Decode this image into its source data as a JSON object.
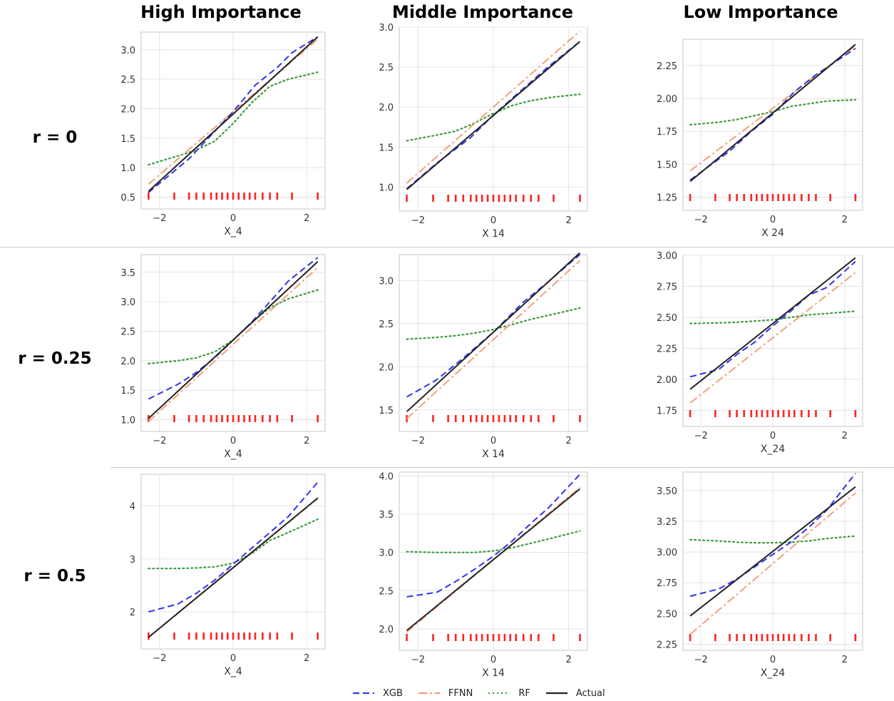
{
  "columns": [
    "High Importance",
    "Middle Importance",
    "Low Importance"
  ],
  "rows": [
    "r = 0",
    "r = 0.25",
    "r = 0.5"
  ],
  "series_styles": {
    "XGB": {
      "color": "#3333ee",
      "dash": "9,5"
    },
    "FFNN": {
      "color": "#f4a078",
      "dash": "12,4,3,4"
    },
    "RF": {
      "color": "#3a9a3a",
      "dash": "2,4"
    },
    "Actual": {
      "color": "#222222",
      "dash": ""
    }
  },
  "legend": [
    {
      "name": "XGB",
      "color": "#3333ee"
    },
    {
      "name": "FFNN",
      "color": "#f4a078"
    },
    {
      "name": "RF",
      "color": "#3a9a3a"
    },
    {
      "name": "Actual",
      "color": "#222222"
    }
  ],
  "chart_data": [
    {
      "type": "line",
      "xlabel": "X_4",
      "xlim": [
        -2.5,
        2.5
      ],
      "ylim": [
        0.3,
        3.3
      ],
      "xticks": [
        -2,
        0,
        2
      ],
      "yticks": [
        0.5,
        1.0,
        1.5,
        2.0,
        2.5,
        3.0
      ],
      "ytick_labels": [
        "0.5",
        "1.0",
        "1.5",
        "2.0",
        "2.5",
        "3.0"
      ],
      "rug_color": "#ff2222",
      "rug": [
        -2.3,
        -1.6,
        -1.2,
        -1.0,
        -0.8,
        -0.6,
        -0.45,
        -0.3,
        -0.15,
        0.0,
        0.15,
        0.3,
        0.45,
        0.6,
        0.8,
        1.0,
        1.2,
        1.6,
        2.3
      ],
      "series": [
        {
          "name": "XGB",
          "x": [
            -2.3,
            -1.2,
            -0.6,
            0.0,
            0.6,
            1.2,
            1.6,
            2.3
          ],
          "y": [
            0.58,
            1.15,
            1.55,
            1.95,
            2.4,
            2.7,
            2.95,
            3.22
          ]
        },
        {
          "name": "FFNN",
          "x": [
            -2.3,
            2.3
          ],
          "y": [
            0.72,
            3.18
          ]
        },
        {
          "name": "RF",
          "x": [
            -2.3,
            -1.5,
            -1.0,
            -0.5,
            0.0,
            0.5,
            1.0,
            1.5,
            2.3
          ],
          "y": [
            1.05,
            1.2,
            1.3,
            1.45,
            1.75,
            2.1,
            2.38,
            2.5,
            2.62
          ]
        },
        {
          "name": "Actual",
          "x": [
            -2.3,
            2.3
          ],
          "y": [
            0.6,
            3.22
          ]
        }
      ]
    },
    {
      "type": "line",
      "xlabel": "X 14",
      "xlim": [
        -2.5,
        2.5
      ],
      "ylim": [
        0.7,
        3.0
      ],
      "xticks": [
        -2,
        0,
        2
      ],
      "yticks": [
        1.0,
        1.5,
        2.0,
        2.5,
        3.0
      ],
      "ytick_labels": [
        "1.0",
        "1.5",
        "2.0",
        "2.5",
        "3.0"
      ],
      "rug_color": "#ff2222",
      "rug": [
        -2.3,
        -1.6,
        -1.2,
        -1.0,
        -0.8,
        -0.6,
        -0.45,
        -0.3,
        -0.15,
        0.0,
        0.15,
        0.3,
        0.45,
        0.6,
        0.8,
        1.0,
        1.2,
        1.6,
        2.3
      ],
      "series": [
        {
          "name": "XGB",
          "x": [
            -2.3,
            -1.5,
            -0.6,
            0.0,
            0.6,
            1.5,
            2.3
          ],
          "y": [
            0.98,
            1.3,
            1.62,
            1.9,
            2.15,
            2.52,
            2.82
          ]
        },
        {
          "name": "FFNN",
          "x": [
            -2.3,
            2.3
          ],
          "y": [
            1.05,
            2.95
          ]
        },
        {
          "name": "RF",
          "x": [
            -2.3,
            -1.5,
            -1.0,
            -0.5,
            0.0,
            0.5,
            1.0,
            1.5,
            2.3
          ],
          "y": [
            1.58,
            1.65,
            1.7,
            1.8,
            1.92,
            2.02,
            2.08,
            2.12,
            2.16
          ]
        },
        {
          "name": "Actual",
          "x": [
            -2.3,
            2.3
          ],
          "y": [
            0.97,
            2.82
          ]
        }
      ]
    },
    {
      "type": "line",
      "xlabel": "X 24",
      "xlim": [
        -2.5,
        2.5
      ],
      "ylim": [
        1.15,
        2.45
      ],
      "xticks": [
        -2,
        0,
        2
      ],
      "yticks": [
        1.25,
        1.5,
        1.75,
        2.0,
        2.25
      ],
      "ytick_labels": [
        "1.25",
        "1.50",
        "1.75",
        "2.00",
        "2.25"
      ],
      "rug_color": "#ff2222",
      "rug": [
        -2.3,
        -1.6,
        -1.2,
        -1.0,
        -0.8,
        -0.6,
        -0.45,
        -0.3,
        -0.15,
        0.0,
        0.15,
        0.3,
        0.45,
        0.6,
        0.8,
        1.0,
        1.2,
        1.6,
        2.3
      ],
      "series": [
        {
          "name": "XGB",
          "x": [
            -2.3,
            -1.2,
            -0.6,
            0.0,
            0.6,
            1.2,
            2.3
          ],
          "y": [
            1.38,
            1.6,
            1.75,
            1.88,
            2.05,
            2.18,
            2.38
          ]
        },
        {
          "name": "FFNN",
          "x": [
            -2.3,
            2.3
          ],
          "y": [
            1.45,
            2.4
          ]
        },
        {
          "name": "RF",
          "x": [
            -2.3,
            -1.5,
            -1.0,
            -0.5,
            0.0,
            0.5,
            1.0,
            1.5,
            2.3
          ],
          "y": [
            1.8,
            1.82,
            1.84,
            1.87,
            1.9,
            1.94,
            1.96,
            1.98,
            1.99
          ]
        },
        {
          "name": "Actual",
          "x": [
            -2.3,
            2.3
          ],
          "y": [
            1.37,
            2.41
          ]
        }
      ]
    },
    {
      "type": "line",
      "xlabel": "X_4",
      "xlim": [
        -2.5,
        2.5
      ],
      "ylim": [
        0.8,
        3.8
      ],
      "xticks": [
        -2,
        0,
        2
      ],
      "yticks": [
        1.0,
        1.5,
        2.0,
        2.5,
        3.0,
        3.5
      ],
      "ytick_labels": [
        "1.0",
        "1.5",
        "2.0",
        "2.5",
        "3.0",
        "3.5"
      ],
      "rug_color": "#ff2222",
      "rug": [
        -2.3,
        -1.6,
        -1.2,
        -1.0,
        -0.8,
        -0.6,
        -0.45,
        -0.3,
        -0.15,
        0.0,
        0.15,
        0.3,
        0.45,
        0.6,
        0.8,
        1.0,
        1.2,
        1.6,
        2.3
      ],
      "series": [
        {
          "name": "XGB",
          "x": [
            -2.3,
            -1.5,
            -1.0,
            -0.5,
            0.0,
            0.5,
            1.0,
            1.5,
            2.3
          ],
          "y": [
            1.35,
            1.6,
            1.8,
            2.05,
            2.35,
            2.65,
            3.0,
            3.35,
            3.75
          ]
        },
        {
          "name": "FFNN",
          "x": [
            -2.3,
            2.3
          ],
          "y": [
            0.97,
            3.58
          ]
        },
        {
          "name": "RF",
          "x": [
            -2.3,
            -1.5,
            -1.0,
            -0.5,
            0.0,
            0.5,
            1.0,
            1.5,
            2.3
          ],
          "y": [
            1.95,
            2.0,
            2.05,
            2.15,
            2.35,
            2.65,
            2.9,
            3.05,
            3.2
          ]
        },
        {
          "name": "Actual",
          "x": [
            -2.3,
            2.3
          ],
          "y": [
            1.02,
            3.68
          ]
        }
      ]
    },
    {
      "type": "line",
      "xlabel": "X 14",
      "xlim": [
        -2.5,
        2.5
      ],
      "ylim": [
        1.25,
        3.3
      ],
      "xticks": [
        -2,
        0,
        2
      ],
      "yticks": [
        1.5,
        2.0,
        2.5,
        3.0
      ],
      "ytick_labels": [
        "1.5",
        "2.0",
        "2.5",
        "3.0"
      ],
      "rug_color": "#ff2222",
      "rug": [
        -2.3,
        -1.6,
        -1.2,
        -1.0,
        -0.8,
        -0.6,
        -0.45,
        -0.3,
        -0.15,
        0.0,
        0.15,
        0.3,
        0.45,
        0.6,
        0.8,
        1.0,
        1.2,
        1.6,
        2.3
      ],
      "series": [
        {
          "name": "XGB",
          "x": [
            -2.3,
            -1.5,
            -0.8,
            0.0,
            0.8,
            1.5,
            2.3
          ],
          "y": [
            1.65,
            1.85,
            2.1,
            2.4,
            2.75,
            3.0,
            3.3
          ]
        },
        {
          "name": "FFNN",
          "x": [
            -2.3,
            2.3
          ],
          "y": [
            1.4,
            3.23
          ]
        },
        {
          "name": "RF",
          "x": [
            -2.3,
            -1.5,
            -1.0,
            -0.5,
            0.0,
            0.5,
            1.0,
            1.5,
            2.3
          ],
          "y": [
            2.32,
            2.34,
            2.36,
            2.39,
            2.43,
            2.49,
            2.55,
            2.6,
            2.68
          ]
        },
        {
          "name": "Actual",
          "x": [
            -2.3,
            2.3
          ],
          "y": [
            1.48,
            3.32
          ]
        }
      ]
    },
    {
      "type": "line",
      "xlabel": "X_24",
      "xlim": [
        -2.5,
        2.5
      ],
      "ylim": [
        1.62,
        3.0
      ],
      "xticks": [
        -2,
        0,
        2
      ],
      "yticks": [
        1.75,
        2.0,
        2.25,
        2.5,
        2.75,
        3.0
      ],
      "ytick_labels": [
        "1.75",
        "2.00",
        "2.25",
        "2.50",
        "2.75",
        "3.00"
      ],
      "rug_color": "#ff2222",
      "rug": [
        -2.3,
        -1.6,
        -1.2,
        -1.0,
        -0.8,
        -0.6,
        -0.45,
        -0.3,
        -0.15,
        0.0,
        0.15,
        0.3,
        0.45,
        0.6,
        0.8,
        1.0,
        1.2,
        1.6,
        2.3
      ],
      "series": [
        {
          "name": "XGB",
          "x": [
            -2.3,
            -1.5,
            -1.0,
            -0.5,
            0.0,
            0.5,
            1.0,
            1.5,
            2.3
          ],
          "y": [
            2.02,
            2.08,
            2.2,
            2.3,
            2.43,
            2.55,
            2.68,
            2.74,
            2.95
          ]
        },
        {
          "name": "FFNN",
          "x": [
            -2.3,
            2.3
          ],
          "y": [
            1.81,
            2.86
          ]
        },
        {
          "name": "RF",
          "x": [
            -2.3,
            -1.5,
            -1.0,
            -0.5,
            0.0,
            0.5,
            1.0,
            1.5,
            2.3
          ],
          "y": [
            2.45,
            2.455,
            2.46,
            2.47,
            2.48,
            2.5,
            2.52,
            2.53,
            2.55
          ]
        },
        {
          "name": "Actual",
          "x": [
            -2.3,
            2.3
          ],
          "y": [
            1.92,
            2.98
          ]
        }
      ]
    },
    {
      "type": "line",
      "xlabel": "X_4",
      "xlim": [
        -2.5,
        2.5
      ],
      "ylim": [
        1.3,
        4.6
      ],
      "xticks": [
        -2,
        0,
        2
      ],
      "yticks": [
        2,
        3,
        4
      ],
      "ytick_labels": [
        "2",
        "3",
        "4"
      ],
      "rug_color": "#ff2222",
      "rug": [
        -2.3,
        -1.6,
        -1.2,
        -1.0,
        -0.8,
        -0.6,
        -0.45,
        -0.3,
        -0.15,
        0.0,
        0.15,
        0.3,
        0.45,
        0.6,
        0.8,
        1.0,
        1.2,
        1.6,
        2.3
      ],
      "series": [
        {
          "name": "XGB",
          "x": [
            -2.3,
            -1.5,
            -1.0,
            -0.5,
            0.0,
            0.5,
            1.0,
            1.5,
            2.3
          ],
          "y": [
            2.0,
            2.15,
            2.35,
            2.6,
            2.9,
            3.2,
            3.5,
            3.8,
            4.45
          ]
        },
        {
          "name": "FFNN",
          "x": [
            -2.3,
            2.3
          ],
          "y": [
            1.52,
            4.14
          ]
        },
        {
          "name": "RF",
          "x": [
            -2.3,
            -1.5,
            -1.0,
            -0.5,
            0.0,
            0.5,
            1.0,
            1.5,
            2.3
          ],
          "y": [
            2.82,
            2.82,
            2.83,
            2.85,
            2.92,
            3.1,
            3.35,
            3.5,
            3.75
          ]
        },
        {
          "name": "Actual",
          "x": [
            -2.3,
            2.3
          ],
          "y": [
            1.52,
            4.15
          ]
        }
      ]
    },
    {
      "type": "line",
      "xlabel": "X 14",
      "xlim": [
        -2.5,
        2.5
      ],
      "ylim": [
        1.72,
        4.05
      ],
      "xticks": [
        -2,
        0,
        2
      ],
      "yticks": [
        2.0,
        2.5,
        3.0,
        3.5,
        4.0
      ],
      "ytick_labels": [
        "2.0",
        "2.5",
        "3.0",
        "3.5",
        "4.0"
      ],
      "rug_color": "#ff2222",
      "rug": [
        -2.3,
        -1.6,
        -1.2,
        -1.0,
        -0.8,
        -0.6,
        -0.45,
        -0.3,
        -0.15,
        0.0,
        0.15,
        0.3,
        0.45,
        0.6,
        0.8,
        1.0,
        1.2,
        1.6,
        2.3
      ],
      "series": [
        {
          "name": "XGB",
          "x": [
            -2.3,
            -1.5,
            -1.0,
            -0.5,
            0.0,
            0.5,
            1.0,
            1.5,
            2.3
          ],
          "y": [
            2.42,
            2.48,
            2.62,
            2.78,
            2.95,
            3.15,
            3.38,
            3.6,
            4.02
          ]
        },
        {
          "name": "FFNN",
          "x": [
            -2.3,
            2.3
          ],
          "y": [
            1.96,
            3.85
          ]
        },
        {
          "name": "RF",
          "x": [
            -2.3,
            -1.5,
            -1.0,
            -0.5,
            0.0,
            0.5,
            1.0,
            1.5,
            2.3
          ],
          "y": [
            3.01,
            3.0,
            3.0,
            3.0,
            3.02,
            3.06,
            3.12,
            3.18,
            3.28
          ]
        },
        {
          "name": "Actual",
          "x": [
            -2.3,
            2.3
          ],
          "y": [
            1.98,
            3.83
          ]
        }
      ]
    },
    {
      "type": "line",
      "xlabel": "X_24",
      "xlim": [
        -2.5,
        2.5
      ],
      "ylim": [
        2.2,
        3.65
      ],
      "xticks": [
        -2,
        0,
        2
      ],
      "yticks": [
        2.25,
        2.5,
        2.75,
        3.0,
        3.25,
        3.5
      ],
      "ytick_labels": [
        "2.25",
        "2.50",
        "2.75",
        "3.00",
        "3.25",
        "3.50"
      ],
      "rug_color": "#ff2222",
      "rug": [
        -2.3,
        -1.6,
        -1.2,
        -1.0,
        -0.8,
        -0.6,
        -0.45,
        -0.3,
        -0.15,
        0.0,
        0.15,
        0.3,
        0.45,
        0.6,
        0.8,
        1.0,
        1.2,
        1.6,
        2.3
      ],
      "series": [
        {
          "name": "XGB",
          "x": [
            -2.3,
            -1.5,
            -1.0,
            -0.5,
            0.0,
            0.5,
            1.0,
            1.5,
            2.3
          ],
          "y": [
            2.64,
            2.7,
            2.78,
            2.88,
            2.98,
            3.08,
            3.2,
            3.34,
            3.64
          ]
        },
        {
          "name": "FFNN",
          "x": [
            -2.3,
            2.3
          ],
          "y": [
            2.33,
            3.48
          ]
        },
        {
          "name": "RF",
          "x": [
            -2.3,
            -1.5,
            -1.0,
            -0.5,
            0.0,
            0.5,
            1.0,
            1.5,
            2.3
          ],
          "y": [
            3.1,
            3.09,
            3.08,
            3.075,
            3.075,
            3.08,
            3.09,
            3.11,
            3.13
          ]
        },
        {
          "name": "Actual",
          "x": [
            -2.3,
            2.3
          ],
          "y": [
            2.48,
            3.53
          ]
        }
      ]
    }
  ]
}
